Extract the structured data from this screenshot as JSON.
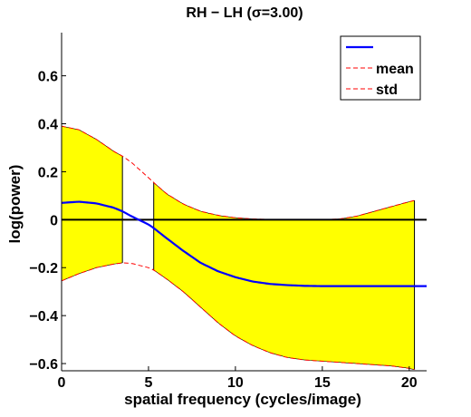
{
  "chart_data": {
    "type": "line",
    "title": "RH − LH (σ=3.00)",
    "xlabel": "spatial frequency (cycles/image)",
    "ylabel": "log(power)",
    "xlim": [
      0,
      21
    ],
    "ylim": [
      -0.63,
      0.78
    ],
    "x_ticks": [
      0,
      5,
      10,
      15,
      20
    ],
    "y_ticks": [
      -0.6,
      -0.4,
      -0.2,
      0,
      0.2,
      0.4,
      0.6
    ],
    "x_tick_labels": [
      "0",
      "5",
      "10",
      "15",
      "20"
    ],
    "y_tick_labels": [
      "−0.6",
      "−0.4",
      "−0.2",
      "0",
      "0.2",
      "0.4",
      "0.6"
    ],
    "grid": false,
    "legend": {
      "placement": "top-right",
      "entries": [
        {
          "label": "",
          "color": "#0000ff",
          "style": "solid"
        },
        {
          "label": "mean",
          "color": "#ff0000",
          "style": "dashed"
        },
        {
          "label": "std",
          "color": "#ff0000",
          "style": "dashed"
        }
      ]
    },
    "x": [
      0,
      1,
      2,
      3,
      3.5,
      4,
      5,
      5.3,
      6,
      7,
      8,
      9,
      10,
      11,
      12,
      13,
      14,
      15,
      16,
      17,
      18,
      19,
      20,
      20.3,
      21
    ],
    "series": [
      {
        "role": "mean",
        "color": "#0000ff",
        "values": [
          0.07,
          0.075,
          0.068,
          0.05,
          0.035,
          0.015,
          -0.02,
          -0.035,
          -0.075,
          -0.13,
          -0.18,
          -0.215,
          -0.24,
          -0.258,
          -0.268,
          -0.273,
          -0.276,
          -0.277,
          -0.277,
          -0.277,
          -0.277,
          -0.277,
          -0.277,
          -0.277,
          -0.277
        ]
      },
      {
        "role": "upper_std",
        "color": "#ff0000",
        "values": [
          0.39,
          0.375,
          0.335,
          0.285,
          0.265,
          0.24,
          0.175,
          0.155,
          0.11,
          0.065,
          0.035,
          0.018,
          0.008,
          0.003,
          0.001,
          0.0,
          0.0,
          0.0,
          0.003,
          0.015,
          0.035,
          0.055,
          0.075,
          0.08,
          0.09
        ]
      },
      {
        "role": "lower_std",
        "color": "#ff0000",
        "values": [
          -0.255,
          -0.225,
          -0.2,
          -0.185,
          -0.18,
          -0.182,
          -0.2,
          -0.21,
          -0.245,
          -0.3,
          -0.365,
          -0.43,
          -0.485,
          -0.525,
          -0.555,
          -0.575,
          -0.585,
          -0.59,
          -0.595,
          -0.6,
          -0.605,
          -0.61,
          -0.62,
          -0.625,
          -0.63
        ]
      }
    ],
    "shaded_ranges": [
      [
        0,
        3.5
      ],
      [
        5.3,
        20.3
      ]
    ],
    "reference_line_y": 0,
    "colors": {
      "fill": "#ffff00",
      "mean": "#0000ff",
      "std": "#ff0000",
      "zero_line": "#000000",
      "segment_edges": "#000000"
    }
  }
}
